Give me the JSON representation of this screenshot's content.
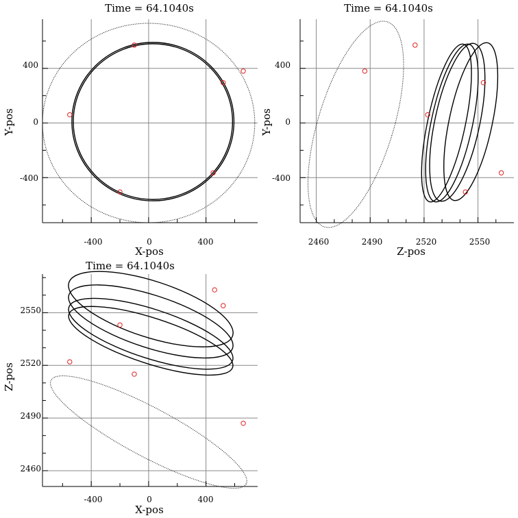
{
  "chart_data": [
    {
      "type": "scatter",
      "title": "Time =  64.1040s",
      "xlabel": "X-pos",
      "ylabel": "Y-pos",
      "xlim": [
        -740,
        760
      ],
      "ylim": [
        -730,
        760
      ],
      "xticks": [
        "-400",
        "0",
        "400"
      ],
      "yticks": [
        "400",
        "0",
        "-400"
      ],
      "grid": true,
      "ellipses": [
        {
          "cx": 0,
          "cy": 0,
          "rx": 740,
          "ry": 730,
          "tilt": 0,
          "style": "dotted"
        },
        {
          "cx": 30,
          "cy": 10,
          "rx": 565,
          "ry": 580,
          "tilt": 0,
          "style": "solid"
        },
        {
          "cx": 30,
          "cy": 10,
          "rx": 555,
          "ry": 570,
          "tilt": 0,
          "style": "solid"
        }
      ],
      "markers": [
        {
          "x": -100,
          "y": 570
        },
        {
          "x": 660,
          "y": 380
        },
        {
          "x": 520,
          "y": 295
        },
        {
          "x": -550,
          "y": 60
        },
        {
          "x": 450,
          "y": -365
        },
        {
          "x": -200,
          "y": -505
        }
      ]
    },
    {
      "type": "scatter",
      "title": "Time =  64.1040s",
      "xlabel": "Z-pos",
      "ylabel": "Y-pos",
      "xlim": [
        2451,
        2570
      ],
      "ylim": [
        -730,
        760
      ],
      "xticks": [
        "2460",
        "2490",
        "2520",
        "2550"
      ],
      "yticks": [
        "400",
        "0",
        "-400"
      ],
      "grid": true,
      "ellipses": [
        {
          "cx": 2482,
          "cy": -10,
          "rx": 21,
          "ry": 785,
          "tilt": 17,
          "style": "dotted"
        },
        {
          "cx": 2532.5,
          "cy": 0,
          "rx": 10.5,
          "ry": 590,
          "tilt": 12,
          "style": "solid"
        },
        {
          "cx": 2535.5,
          "cy": 0,
          "rx": 11.5,
          "ry": 590,
          "tilt": 12,
          "style": "solid"
        },
        {
          "cx": 2538.5,
          "cy": 5,
          "rx": 12.5,
          "ry": 590,
          "tilt": 12,
          "style": "solid"
        },
        {
          "cx": 2546,
          "cy": 10,
          "rx": 12,
          "ry": 590,
          "tilt": 12,
          "style": "solid"
        }
      ],
      "markers": [
        {
          "x": 2487,
          "y": 380
        },
        {
          "x": 2515,
          "y": 570
        },
        {
          "x": 2553,
          "y": 295
        },
        {
          "x": 2522,
          "y": 60
        },
        {
          "x": 2563,
          "y": -365
        },
        {
          "x": 2543,
          "y": -505
        }
      ]
    },
    {
      "type": "scatter",
      "title": "Time =  64.1040s",
      "xlabel": "X-pos",
      "ylabel": "Z-pos",
      "xlim": [
        -740,
        760
      ],
      "ylim": [
        2451,
        2572
      ],
      "xticks": [
        "-400",
        "0",
        "400"
      ],
      "yticks": [
        "2550",
        "2520",
        "2490",
        "2460"
      ],
      "grid": true,
      "ellipses": [
        {
          "cx": 0,
          "cy": 2482,
          "rx": 770,
          "ry": 14,
          "tilt": 28,
          "style": "dotted"
        },
        {
          "cx": 15,
          "cy": 2552,
          "rx": 600,
          "ry": 16,
          "tilt": 18,
          "style": "solid"
        },
        {
          "cx": 15,
          "cy": 2545,
          "rx": 600,
          "ry": 15,
          "tilt": 18,
          "style": "solid"
        },
        {
          "cx": 15,
          "cy": 2538,
          "rx": 600,
          "ry": 14,
          "tilt": 18,
          "style": "solid"
        },
        {
          "cx": 15,
          "cy": 2534,
          "rx": 600,
          "ry": 13,
          "tilt": 18,
          "style": "solid"
        }
      ],
      "markers": [
        {
          "x": 460,
          "y": 2563
        },
        {
          "x": -200,
          "y": 2543
        },
        {
          "x": 520,
          "y": 2554
        },
        {
          "x": -550,
          "y": 2522
        },
        {
          "x": -100,
          "y": 2515
        },
        {
          "x": 660,
          "y": 2487
        }
      ]
    }
  ]
}
